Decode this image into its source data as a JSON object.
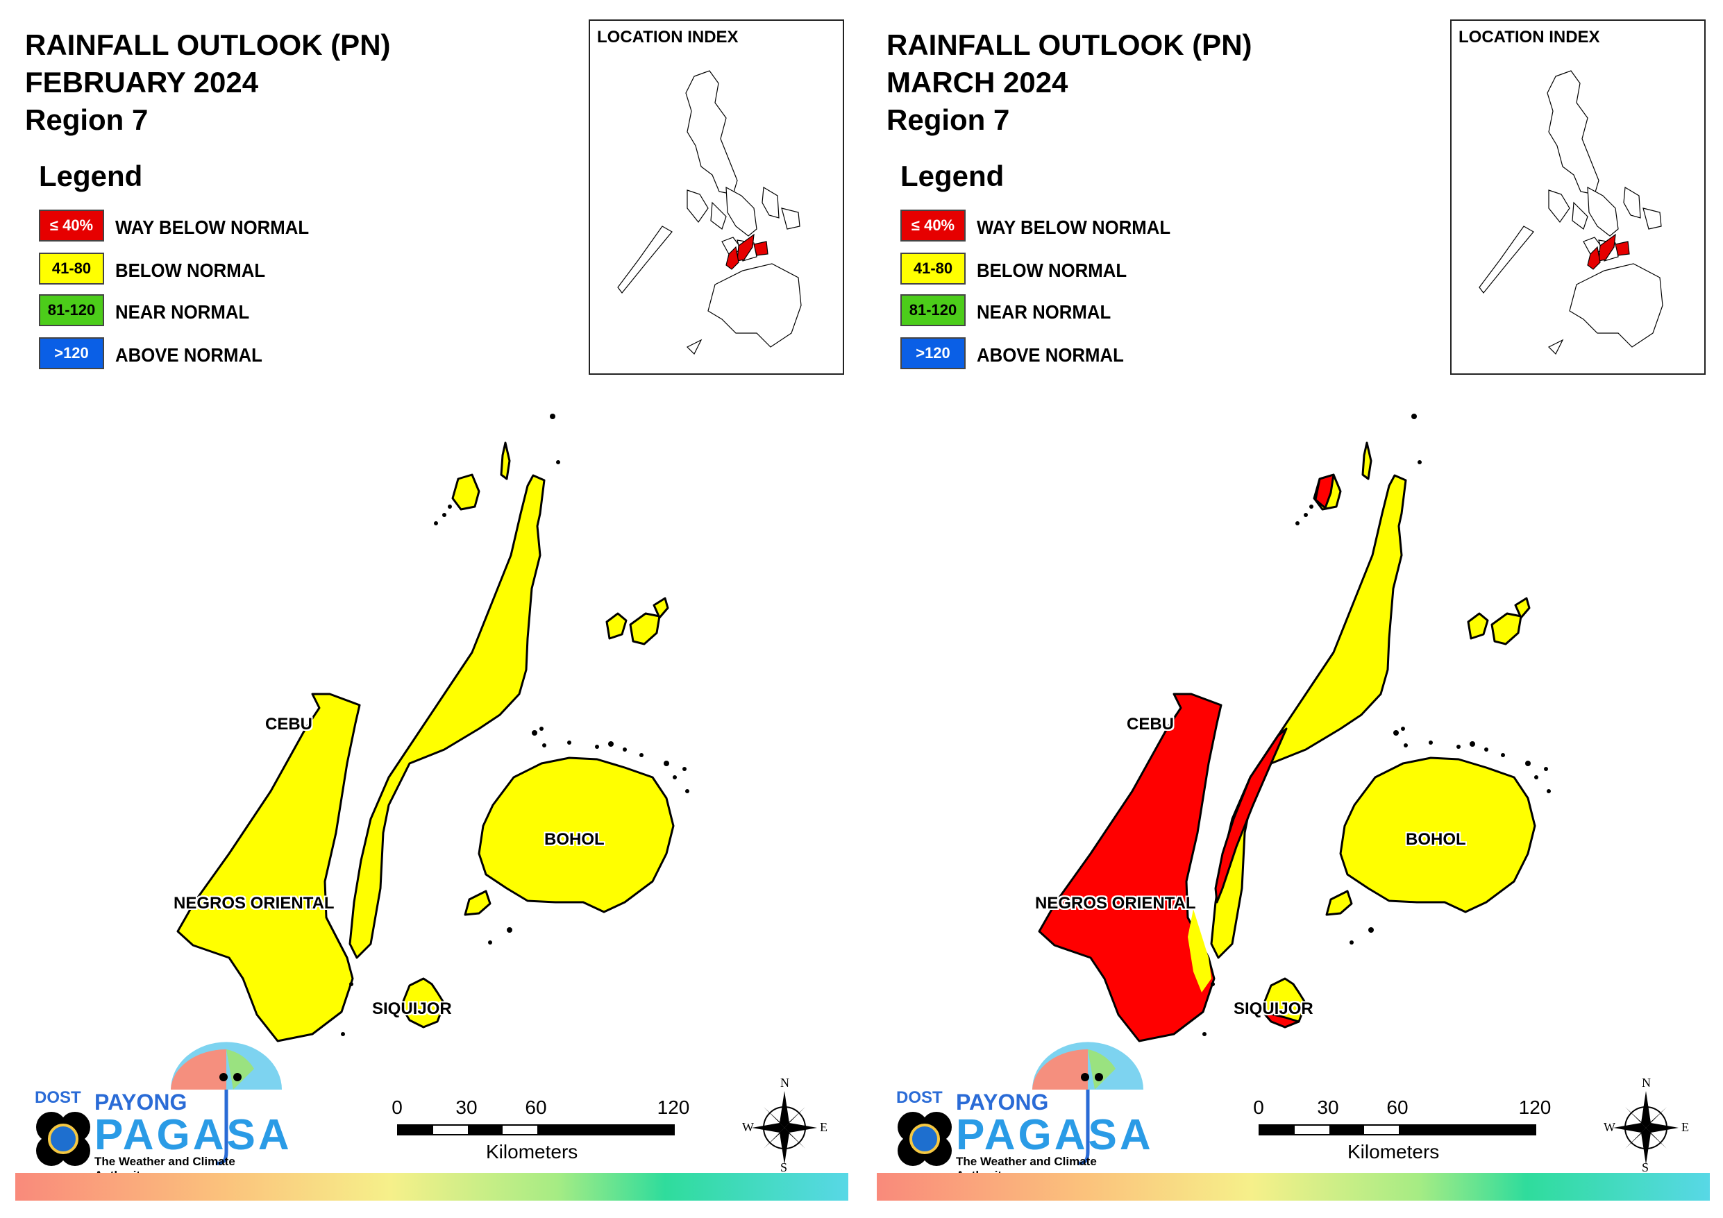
{
  "panels": [
    {
      "title_line1": "RAINFALL OUTLOOK (PN)",
      "title_line2": "FEBRUARY 2024",
      "title_line3": "Region 7",
      "legend_title": "Legend",
      "legend": [
        {
          "range": "≤ 40%",
          "label": "WAY BELOW NORMAL",
          "color": "#e60000",
          "text_color": "#ffffff"
        },
        {
          "range": "41-80",
          "label": "BELOW NORMAL",
          "color": "#ffff00",
          "text_color": "#000000"
        },
        {
          "range": "81-120",
          "label": "NEAR NORMAL",
          "color": "#4ccd1a",
          "text_color": "#000000"
        },
        {
          "range": ">120",
          "label": "ABOVE NORMAL",
          "color": "#0a5fe6",
          "text_color": "#ffffff"
        }
      ],
      "inset_title": "LOCATION INDEX",
      "provinces": [
        {
          "name": "NEGROS ORIENTAL",
          "category": "BELOW NORMAL"
        },
        {
          "name": "CEBU",
          "category": "BELOW NORMAL"
        },
        {
          "name": "BOHOL",
          "category": "BELOW NORMAL"
        },
        {
          "name": "SIQUIJOR",
          "category": "BELOW NORMAL"
        }
      ]
    },
    {
      "title_line1": "RAINFALL OUTLOOK (PN)",
      "title_line2": "MARCH 2024",
      "title_line3": "Region 7",
      "legend_title": "Legend",
      "legend": [
        {
          "range": "≤ 40%",
          "label": "WAY BELOW NORMAL",
          "color": "#e60000",
          "text_color": "#ffffff"
        },
        {
          "range": "41-80",
          "label": "BELOW NORMAL",
          "color": "#ffff00",
          "text_color": "#000000"
        },
        {
          "range": "81-120",
          "label": "NEAR NORMAL",
          "color": "#4ccd1a",
          "text_color": "#000000"
        },
        {
          "range": ">120",
          "label": "ABOVE NORMAL",
          "color": "#0a5fe6",
          "text_color": "#ffffff"
        }
      ],
      "inset_title": "LOCATION INDEX",
      "provinces": [
        {
          "name": "NEGROS ORIENTAL",
          "category": "WAY BELOW NORMAL"
        },
        {
          "name": "CEBU",
          "category": "BELOW NORMAL, western coast WAY BELOW NORMAL"
        },
        {
          "name": "BOHOL",
          "category": "BELOW NORMAL"
        },
        {
          "name": "SIQUIJOR",
          "category": "BELOW NORMAL, southern tip WAY BELOW NORMAL"
        }
      ]
    }
  ],
  "logo": {
    "dost": "DOST",
    "payong": "PAYONG",
    "pagasa": "PAGASA",
    "tagline": "The Weather and Climate Authority"
  },
  "scale": {
    "ticks": [
      "0",
      "30",
      "60",
      "120"
    ],
    "unit": "Kilometers"
  },
  "compass": {
    "n": "N",
    "s": "S",
    "e": "E",
    "w": "W"
  },
  "colors": {
    "yellow": "#ffff00",
    "red": "#ff0000",
    "outline": "#000000"
  }
}
